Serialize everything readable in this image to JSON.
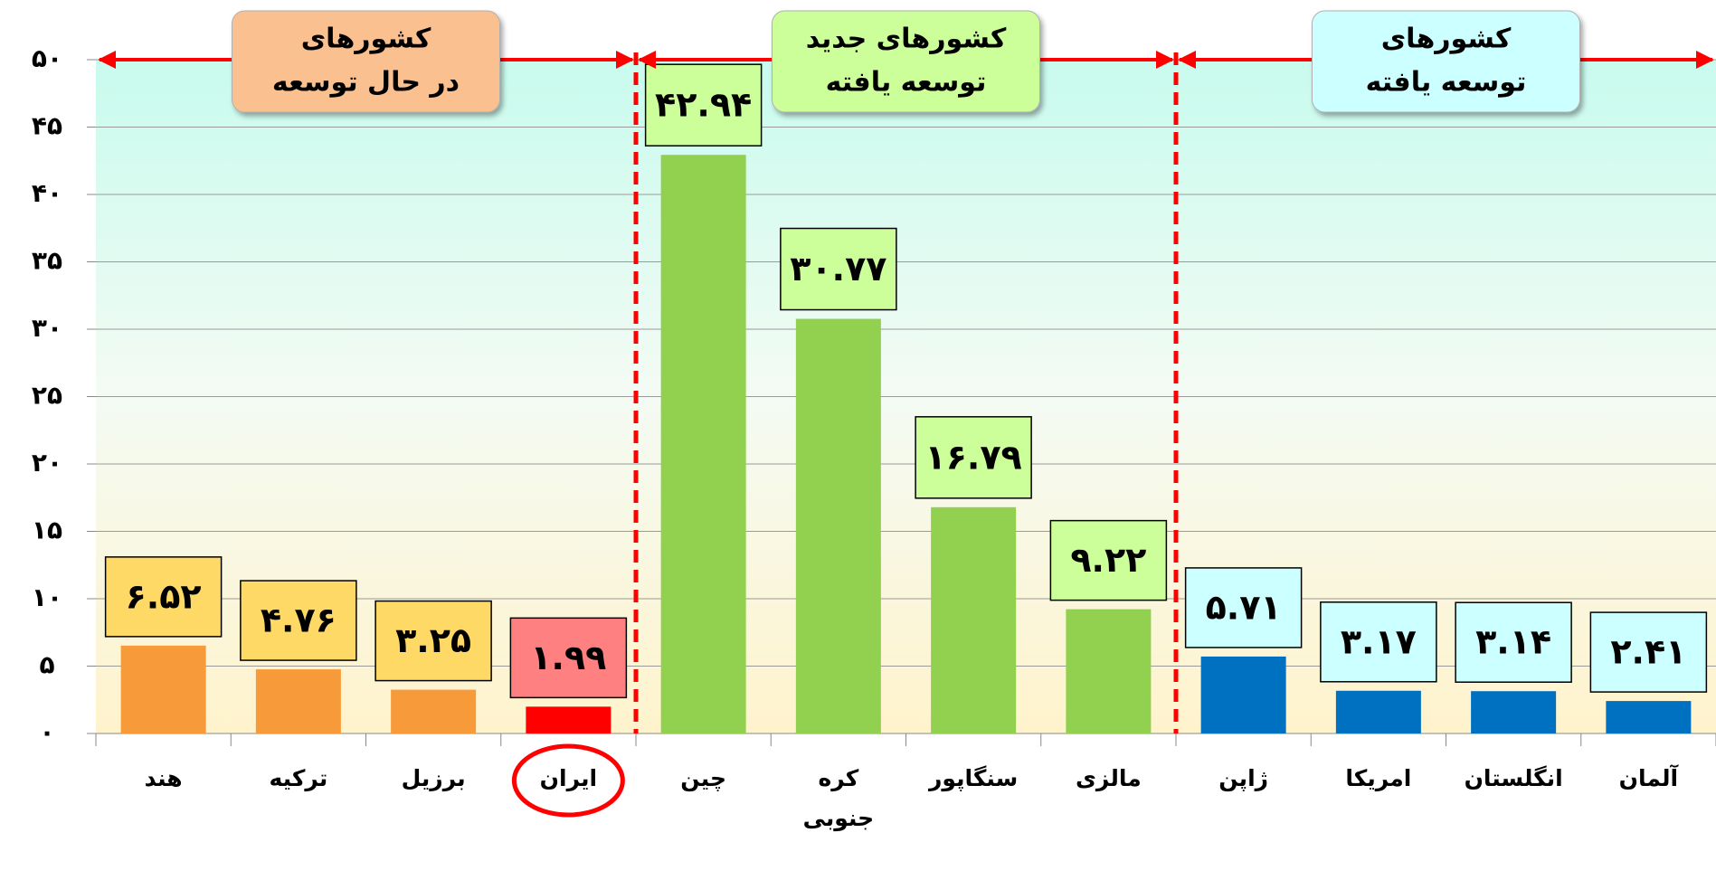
{
  "chart_data": {
    "type": "bar",
    "categories": [
      "هند",
      "ترکیه",
      "برزیل",
      "ایران",
      "چین",
      "کره جنوبی",
      "سنگاپور",
      "مالزی",
      "ژاپن",
      "امریکا",
      "انگلستان",
      "آلمان"
    ],
    "values": [
      6.52,
      4.76,
      3.25,
      1.99,
      42.94,
      30.77,
      16.79,
      9.22,
      5.71,
      3.17,
      3.14,
      2.41
    ],
    "value_labels": [
      "۶.۵۲",
      "۴.۷۶",
      "۳.۲۵",
      "۱.۹۹",
      "۴۲.۹۴",
      "۳۰.۷۷",
      "۱۶.۷۹",
      "۹.۲۲",
      "۵.۷۱",
      "۳.۱۷",
      "۳.۱۴",
      "۲.۴۱"
    ],
    "colors": [
      "#f79a3a",
      "#f79a3a",
      "#f79a3a",
      "#ff0000",
      "#92d050",
      "#92d050",
      "#92d050",
      "#92d050",
      "#0070c0",
      "#0070c0",
      "#0070c0",
      "#0070c0"
    ],
    "label_colors": [
      "#ffd966",
      "#ffd966",
      "#ffd966",
      "#ff8080",
      "#ccff99",
      "#ccff99",
      "#ccff99",
      "#ccff99",
      "#ccffff",
      "#ccffff",
      "#ccffff",
      "#ccffff"
    ],
    "highlight_color": "#ff0000",
    "groups": [
      {
        "lines": [
          "کشورهای",
          "در حال توسعه"
        ],
        "color": "#fbc08f",
        "count": 4
      },
      {
        "lines": [
          "کشورهای جدید",
          "توسعه یافته"
        ],
        "color": "#ccff99",
        "count": 4
      },
      {
        "lines": [
          "کشورهای",
          "توسعه یافته"
        ],
        "color": "#ccffff",
        "count": 4
      }
    ],
    "ylim": [
      0,
      50
    ],
    "yticks": [
      {
        "value": 0,
        "label": "۰"
      },
      {
        "value": 5,
        "label": "۵"
      },
      {
        "value": 10,
        "label": "۱۰"
      },
      {
        "value": 15,
        "label": "۱۵"
      },
      {
        "value": 20,
        "label": "۲۰"
      },
      {
        "value": 25,
        "label": "۲۵"
      },
      {
        "value": 30,
        "label": "۳۰"
      },
      {
        "value": 35,
        "label": "۳۵"
      },
      {
        "value": 40,
        "label": "۴۰"
      },
      {
        "value": 45,
        "label": "۴۵"
      },
      {
        "value": 50,
        "label": "۵۰"
      }
    ],
    "grid": true
  }
}
